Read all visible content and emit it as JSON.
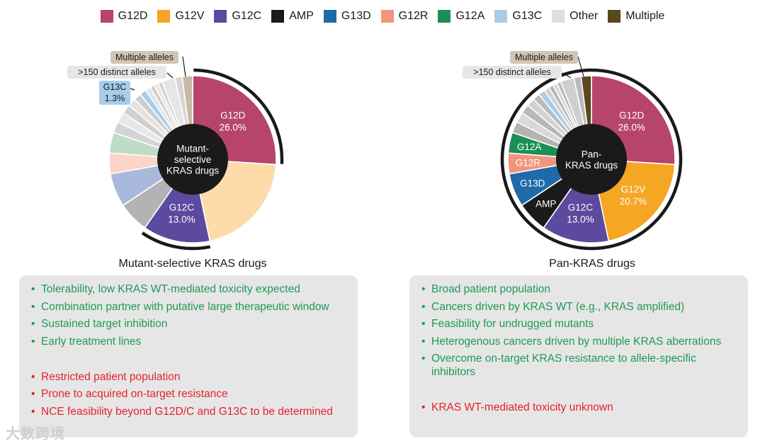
{
  "legend": [
    {
      "label": "G12D",
      "color": "#b6446b"
    },
    {
      "label": "G12V",
      "color": "#f5a623"
    },
    {
      "label": "G12C",
      "color": "#5b4a9e"
    },
    {
      "label": "AMP",
      "color": "#1a1a1a"
    },
    {
      "label": "G13D",
      "color": "#1f6aa8"
    },
    {
      "label": "G12R",
      "color": "#f2957e"
    },
    {
      "label": "G12A",
      "color": "#1b8f55"
    },
    {
      "label": "G13C",
      "color": "#a7cdea"
    },
    {
      "label": "Other",
      "color": "#dedede"
    },
    {
      "label": "Multiple",
      "color": "#5b4622"
    }
  ],
  "chart_data": [
    {
      "type": "pie",
      "title": "Mutant-selective KRAS drugs",
      "center_label": [
        "Mutant-",
        "selective",
        "KRAS drugs"
      ],
      "slices": [
        {
          "name": "G12D",
          "value": 26.0,
          "label": "G12D",
          "pct": "26.0%",
          "color": "#b6446b",
          "label_color": "#ffffff"
        },
        {
          "name": "G12V",
          "value": 20.7,
          "color": "#fddcaa"
        },
        {
          "name": "G12C",
          "value": 13.0,
          "label": "G12C",
          "pct": "13.0%",
          "color": "#5b4a9e",
          "label_color": "#ffffff"
        },
        {
          "name": "AMP",
          "value": 6.0,
          "color": "#b3b3b3"
        },
        {
          "name": "G13D",
          "value": 6.5,
          "color": "#a9b9dc"
        },
        {
          "name": "G12R",
          "value": 4.0,
          "color": "#fbd3c8"
        },
        {
          "name": "G12A",
          "value": 4.0,
          "color": "#bfdcc7"
        },
        {
          "name": "other-1",
          "value": 2.2,
          "color": "#d4d4d4"
        },
        {
          "name": "other-2",
          "value": 2.0,
          "color": "#e7e7e7"
        },
        {
          "name": "other-3",
          "value": 1.8,
          "color": "#d0d0d0"
        },
        {
          "name": "other-4",
          "value": 1.6,
          "color": "#e2e2e2"
        },
        {
          "name": "other-5",
          "value": 1.4,
          "color": "#cdcdcd"
        },
        {
          "name": "G13C",
          "value": 1.3,
          "color": "#a7cdea"
        },
        {
          "name": "other-6",
          "value": 1.0,
          "color": "#e4e4e4"
        },
        {
          "name": "other-7",
          "value": 0.9,
          "color": "#cfcfcf"
        },
        {
          "name": "other-8",
          "value": 0.8,
          "color": "#e6e6e6"
        },
        {
          "name": "other-9",
          "value": 0.8,
          "color": "#d2d2d2"
        },
        {
          "name": "other-10",
          "value": 2.6,
          "color": "#e6e6e6"
        },
        {
          "name": "other-11",
          "value": 1.4,
          "color": "#d6d6d6"
        },
        {
          "name": "Multiple",
          "value": 2.0,
          "color": "#c8b9a6"
        }
      ],
      "annotations": [
        {
          "text": "Multiple alleles",
          "type": "callout",
          "bg": "#d3c5b4"
        },
        {
          "text": ">150 distinct alleles",
          "type": "callout",
          "bg": "#e6e6e6"
        },
        {
          "text": "G13C",
          "text2": "1.3%",
          "type": "callout",
          "bg": "#a7cdea"
        }
      ],
      "highlight_arcs": [
        "G12D",
        "G12C"
      ]
    },
    {
      "type": "pie",
      "title": "Pan-KRAS drugs",
      "center_label": [
        "Pan-",
        "KRAS drugs"
      ],
      "slices": [
        {
          "name": "G12D",
          "value": 26.0,
          "label": "G12D",
          "pct": "26.0%",
          "color": "#b6446b",
          "label_color": "#ffffff"
        },
        {
          "name": "G12V",
          "value": 20.7,
          "label": "G12V",
          "pct": "20.7%",
          "color": "#f5a623",
          "label_color": "#ffffff"
        },
        {
          "name": "G12C",
          "value": 13.0,
          "label": "G12C",
          "pct": "13.0%",
          "color": "#5b4a9e",
          "label_color": "#ffffff"
        },
        {
          "name": "AMP",
          "value": 6.0,
          "label": "AMP",
          "color": "#1a1a1a",
          "label_color": "#ffffff"
        },
        {
          "name": "G13D",
          "value": 6.5,
          "label": "G13D",
          "color": "#1f6aa8",
          "label_color": "#ffffff"
        },
        {
          "name": "G12R",
          "value": 4.0,
          "label": "G12R",
          "color": "#f2957e",
          "label_color": "#ffffff"
        },
        {
          "name": "G12A",
          "value": 4.0,
          "label": "G12A",
          "color": "#1b8f55",
          "label_color": "#ffffff"
        },
        {
          "name": "other-1",
          "value": 2.2,
          "color": "#b4b4b4"
        },
        {
          "name": "other-2",
          "value": 2.0,
          "color": "#d8d8d8"
        },
        {
          "name": "other-3",
          "value": 1.8,
          "color": "#b8b8b8"
        },
        {
          "name": "other-4",
          "value": 1.6,
          "color": "#d2d2d2"
        },
        {
          "name": "other-5",
          "value": 1.4,
          "color": "#bcbcbc"
        },
        {
          "name": "G13C",
          "value": 1.3,
          "color": "#a7cdea"
        },
        {
          "name": "other-6",
          "value": 1.0,
          "color": "#d0d0d0"
        },
        {
          "name": "other-7",
          "value": 0.9,
          "color": "#b6b6b6"
        },
        {
          "name": "other-8",
          "value": 0.8,
          "color": "#d6d6d6"
        },
        {
          "name": "other-9",
          "value": 0.8,
          "color": "#bbbbbb"
        },
        {
          "name": "other-10",
          "value": 2.6,
          "color": "#cfcfcf"
        },
        {
          "name": "other-11",
          "value": 1.4,
          "color": "#b9b9b9"
        },
        {
          "name": "Multiple",
          "value": 2.0,
          "color": "#5b4622"
        }
      ],
      "annotations": [
        {
          "text": "Multiple alleles",
          "type": "callout",
          "bg": "#d3c5b4"
        },
        {
          "text": ">150 distinct alleles",
          "type": "callout",
          "bg": "#e6e6e6"
        }
      ],
      "highlight_arcs": [
        "all"
      ]
    }
  ],
  "panels": {
    "left": {
      "pros": [
        "Tolerability, low KRAS WT-mediated toxicity expected",
        "Combination partner with putative large therapeutic window",
        "Sustained target inhibition",
        "Early treatment lines"
      ],
      "cons": [
        "Restricted patient population",
        "Prone to acquired on-target resistance",
        "NCE feasibility beyond G12D/C and G13C to be determined"
      ]
    },
    "right": {
      "pros": [
        "Broad patient population",
        "Cancers driven by KRAS WT (e.g., KRAS amplified)",
        "Feasibility for undrugged mutants",
        "Heterogenous cancers driven by multiple KRAS aberrations",
        "Overcome on-target KRAS resistance to allele-specific inhibitors"
      ],
      "cons": [
        "KRAS WT-mediated toxicity unknown"
      ]
    }
  },
  "watermark": "大数跨境"
}
